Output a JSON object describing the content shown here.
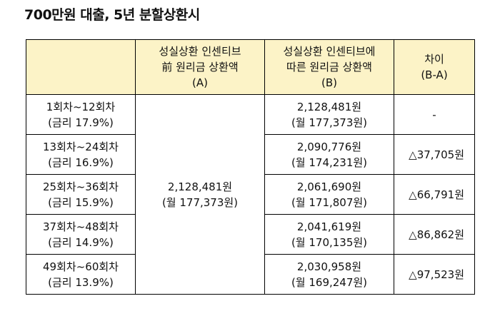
{
  "title": "700만원 대출, 5년 분할상환시",
  "headers": [
    {
      "lines": [
        ""
      ]
    },
    {
      "lines": [
        "성실상환 인센티브",
        "前 원리금 상환액",
        "(A)"
      ]
    },
    {
      "lines": [
        "성실상환 인센티브에",
        "따른 원리금 상환액",
        "(B)"
      ]
    },
    {
      "lines": [
        "차이",
        "(B-A)"
      ]
    }
  ],
  "before": {
    "total": "2,128,481원",
    "monthly": "(월 177,373원)"
  },
  "rows": [
    {
      "period": "1회차~12회차",
      "rate": "(금리 17.9%)",
      "after_total": "2,128,481원",
      "after_monthly": "(월 177,373원)",
      "diff": "-"
    },
    {
      "period": "13회차~24회차",
      "rate": "(금리 16.9%)",
      "after_total": "2,090,776원",
      "after_monthly": "(월 174,231원)",
      "diff": "△37,705원"
    },
    {
      "period": "25회차~36회차",
      "rate": "(금리 15.9%)",
      "after_total": "2,061,690원",
      "after_monthly": "(월 171,807원)",
      "diff": "△66,791원"
    },
    {
      "period": "37회차~48회차",
      "rate": "(금리 14.9%)",
      "after_total": "2,041,619원",
      "after_monthly": "(월 170,135원)",
      "diff": "△86,862원"
    },
    {
      "period": "49회차~60회차",
      "rate": "(금리 13.9%)",
      "after_total": "2,030,958원",
      "after_monthly": "(월 169,247원)",
      "diff": "△97,523원"
    }
  ],
  "colors": {
    "header_bg": "#fcf3c7",
    "border": "#000000"
  }
}
